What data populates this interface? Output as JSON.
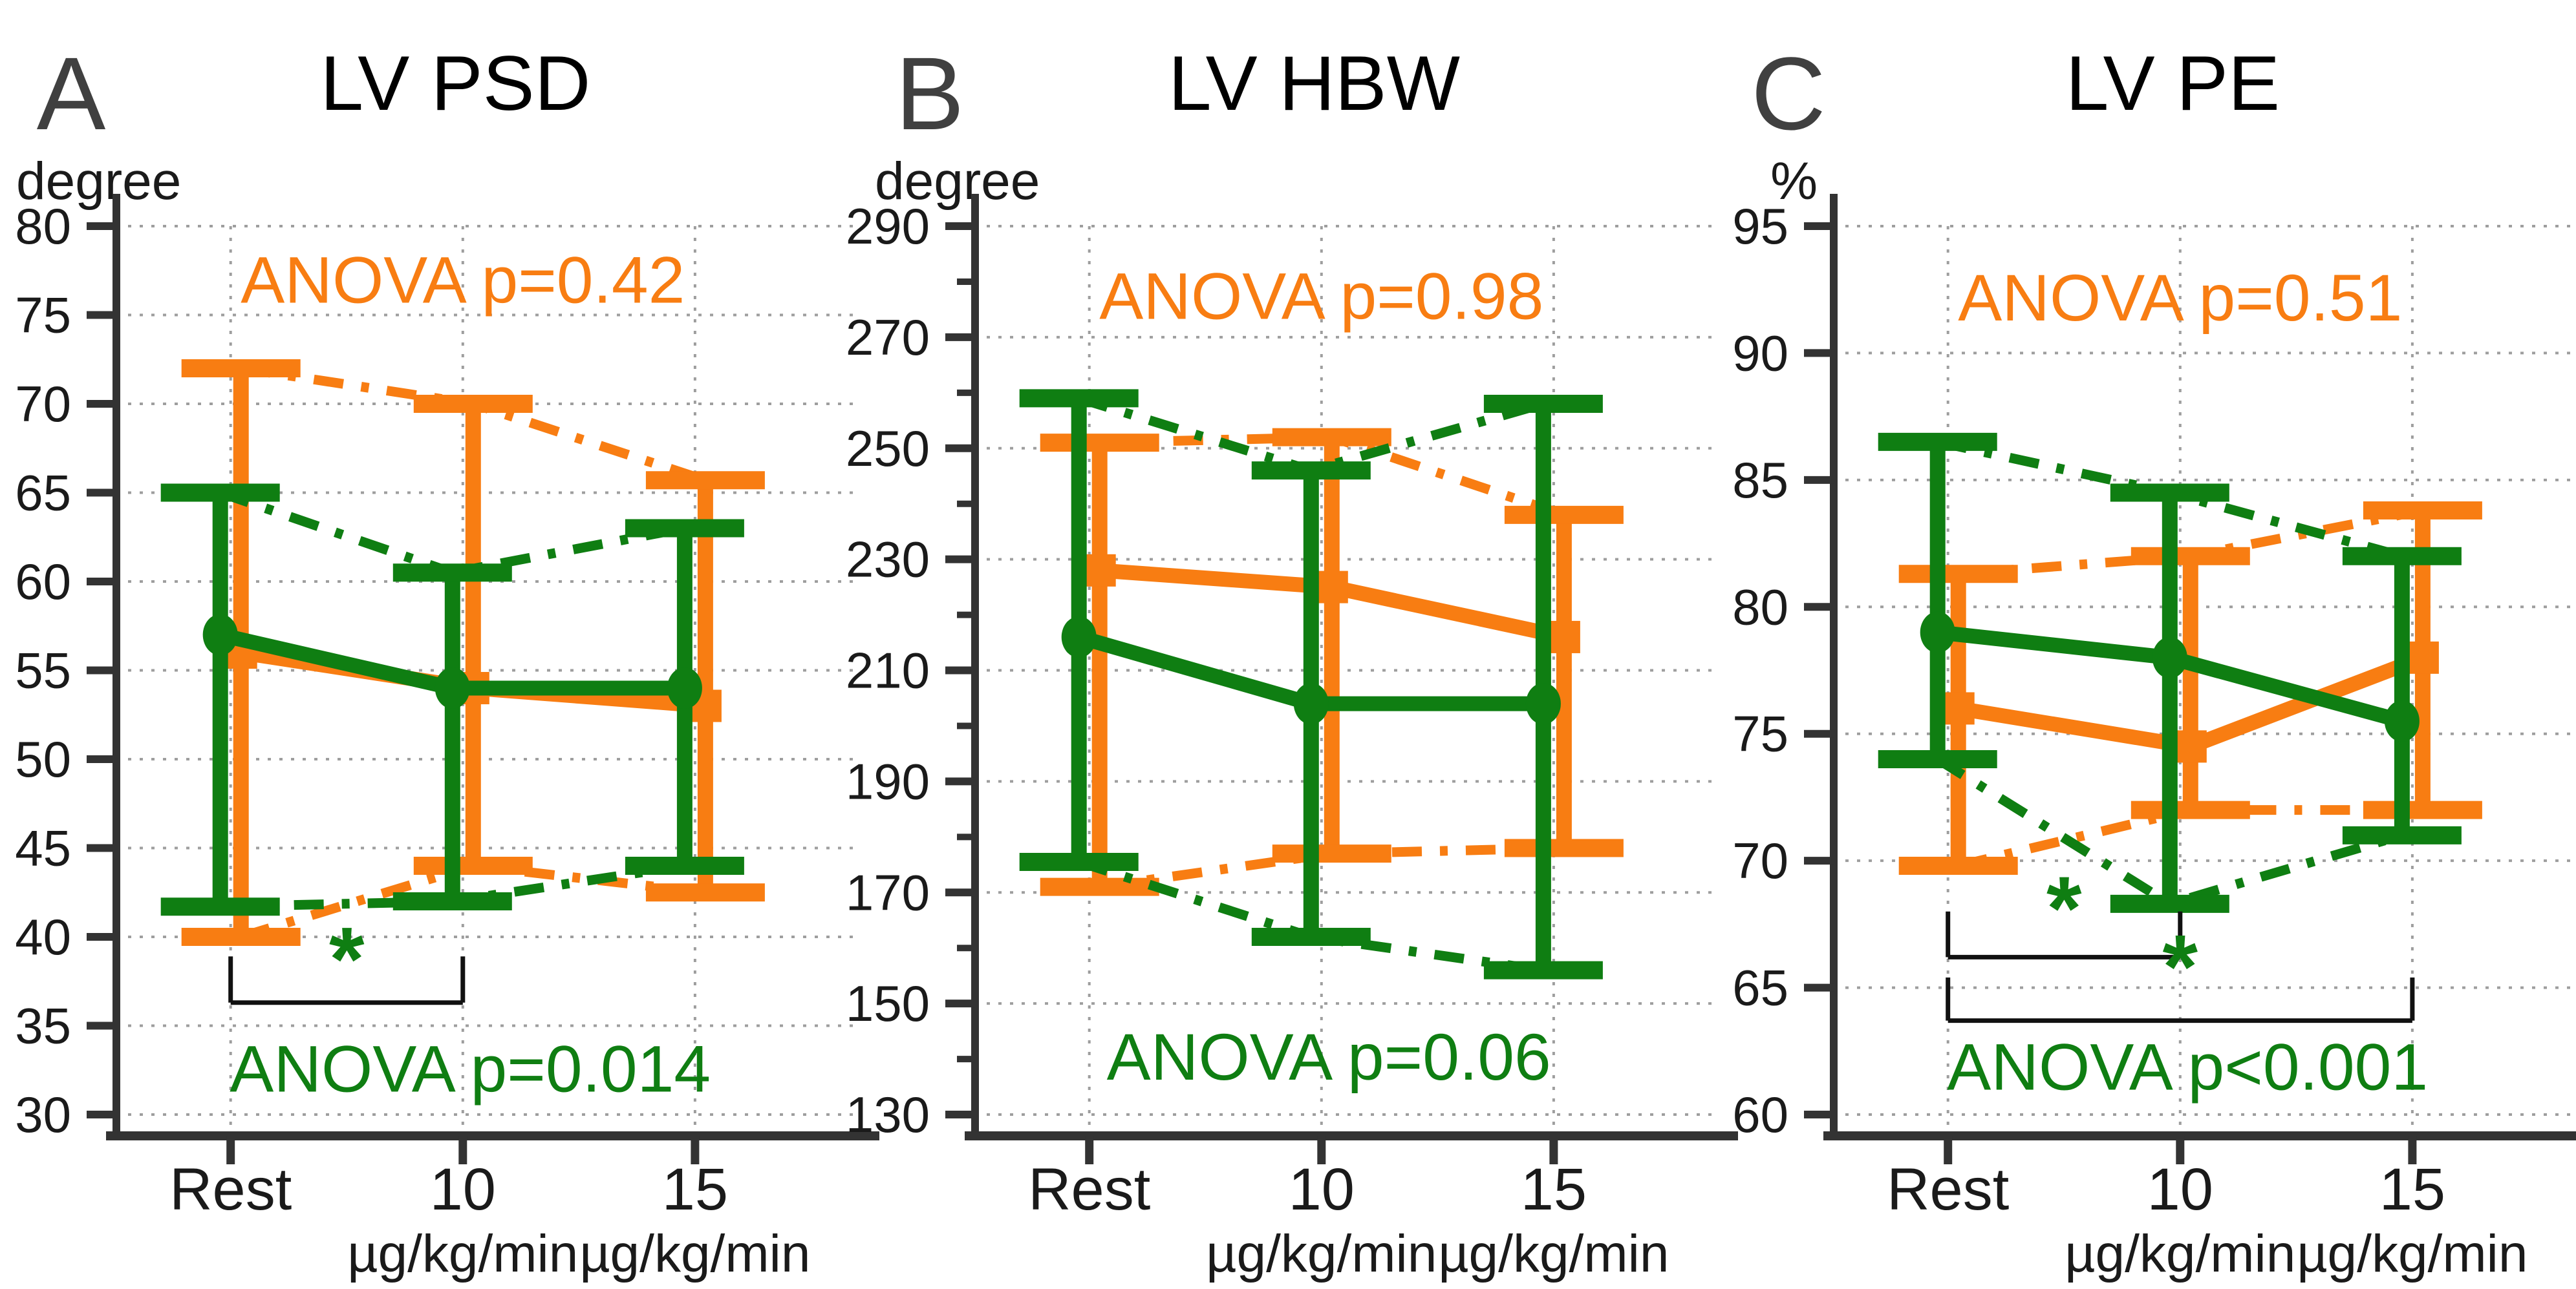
{
  "figure": {
    "background": "#ffffff",
    "colors": {
      "orange_series": "#f87d12",
      "green_series": "#0f7e12",
      "axis": "#333333",
      "tick_text": "#1a1a1a",
      "grid": "#9e9e9e",
      "bracket": "#111111",
      "title_text": "#000000",
      "panel_letter": "#404040"
    }
  },
  "chart_data": [
    {
      "type": "line",
      "panel_letter": "A",
      "title": "LV PSD",
      "unit_label": "degree",
      "x_categories": [
        "Rest",
        "10",
        "15"
      ],
      "x_sublabels": [
        "",
        "µg/kg/min",
        "µg/kg/min"
      ],
      "ylim": [
        30,
        80
      ],
      "ytick_step": 5,
      "yminor_step": null,
      "yticks": [
        80,
        75,
        70,
        65,
        60,
        55,
        50,
        45,
        40,
        35,
        30
      ],
      "grid": true,
      "legend_position": "none",
      "series": [
        {
          "name": "orange-squares",
          "color": "#f87d12",
          "marker": "square",
          "means": [
            56,
            54,
            53
          ],
          "upper_whisker": [
            72,
            70,
            65.7
          ],
          "lower_whisker": [
            40,
            44,
            42.5
          ]
        },
        {
          "name": "green-circles",
          "color": "#0f7e12",
          "marker": "circle",
          "means": [
            57,
            54,
            54
          ],
          "upper_whisker": [
            65,
            60.5,
            63
          ],
          "lower_whisker": [
            41.7,
            42,
            44
          ]
        }
      ],
      "annotations": {
        "top": {
          "label": "ANOVA p=0.42",
          "color": "#f87d12",
          "y": 77
        },
        "bottom": {
          "label": "ANOVA p=0.014",
          "color": "#0f7e12",
          "y": 32.6
        }
      },
      "significance_brackets": [
        {
          "from_index": 0,
          "to_index": 1,
          "y": 36.3,
          "tick_height": 2.6,
          "star": "*",
          "star_y": 37.0,
          "star_color": "#0f7e12"
        }
      ]
    },
    {
      "type": "line",
      "panel_letter": "B",
      "title": "LV HBW",
      "unit_label": "degree",
      "x_categories": [
        "Rest",
        "10",
        "15"
      ],
      "x_sublabels": [
        "",
        "µg/kg/min",
        "µg/kg/min"
      ],
      "ylim": [
        130,
        290
      ],
      "ytick_step": 20,
      "yminor_step": 10,
      "yticks": [
        290,
        270,
        250,
        230,
        210,
        190,
        170,
        150,
        130
      ],
      "grid": true,
      "legend_position": "none",
      "series": [
        {
          "name": "orange-squares",
          "color": "#f87d12",
          "marker": "square",
          "means": [
            228,
            225,
            216
          ],
          "upper_whisker": [
            251,
            252,
            238
          ],
          "lower_whisker": [
            171,
            177,
            178
          ]
        },
        {
          "name": "green-circles",
          "color": "#0f7e12",
          "marker": "circle",
          "means": [
            216,
            204,
            204
          ],
          "upper_whisker": [
            259,
            246,
            258
          ],
          "lower_whisker": [
            175.5,
            162,
            156
          ]
        }
      ],
      "annotations": {
        "top": {
          "label": "ANOVA p=0.98",
          "color": "#f87d12",
          "y": 277.5
        },
        "bottom": {
          "label": "ANOVA p=0.06",
          "color": "#0f7e12",
          "y": 140.5
        }
      },
      "significance_brackets": []
    },
    {
      "type": "line",
      "panel_letter": "C",
      "title": "LV PE",
      "unit_label": "%",
      "x_categories": [
        "Rest",
        "10",
        "15"
      ],
      "x_sublabels": [
        "",
        "µg/kg/min",
        "µg/kg/min"
      ],
      "ylim": [
        60,
        95
      ],
      "ytick_step": 5,
      "yminor_step": null,
      "yticks": [
        95,
        90,
        85,
        80,
        75,
        70,
        65,
        60
      ],
      "grid": true,
      "legend_position": "none",
      "series": [
        {
          "name": "orange-squares",
          "color": "#f87d12",
          "marker": "square",
          "means": [
            76,
            74.5,
            78
          ],
          "upper_whisker": [
            81.3,
            82,
            83.8
          ],
          "lower_whisker": [
            69.8,
            72,
            72
          ]
        },
        {
          "name": "green-circles",
          "color": "#0f7e12",
          "marker": "circle",
          "means": [
            79,
            78,
            75.5
          ],
          "upper_whisker": [
            86.5,
            84.5,
            82
          ],
          "lower_whisker": [
            74,
            68.3,
            71
          ]
        }
      ],
      "annotations": {
        "top": {
          "label": "ANOVA p=0.51",
          "color": "#f87d12",
          "y": 92.2
        },
        "bottom": {
          "label": "ANOVA p<0.001",
          "color": "#0f7e12",
          "y": 61.9
        }
      },
      "significance_brackets": [
        {
          "from_index": 0,
          "to_index": 1,
          "y": 66.2,
          "tick_height": 1.8,
          "star": "*",
          "star_y": 66.9,
          "star_color": "#0f7e12"
        },
        {
          "from_index": 0,
          "to_index": 2,
          "y": 63.7,
          "tick_height": 1.7,
          "star": "*",
          "star_y": 64.6,
          "star_color": "#0f7e12"
        }
      ]
    }
  ]
}
